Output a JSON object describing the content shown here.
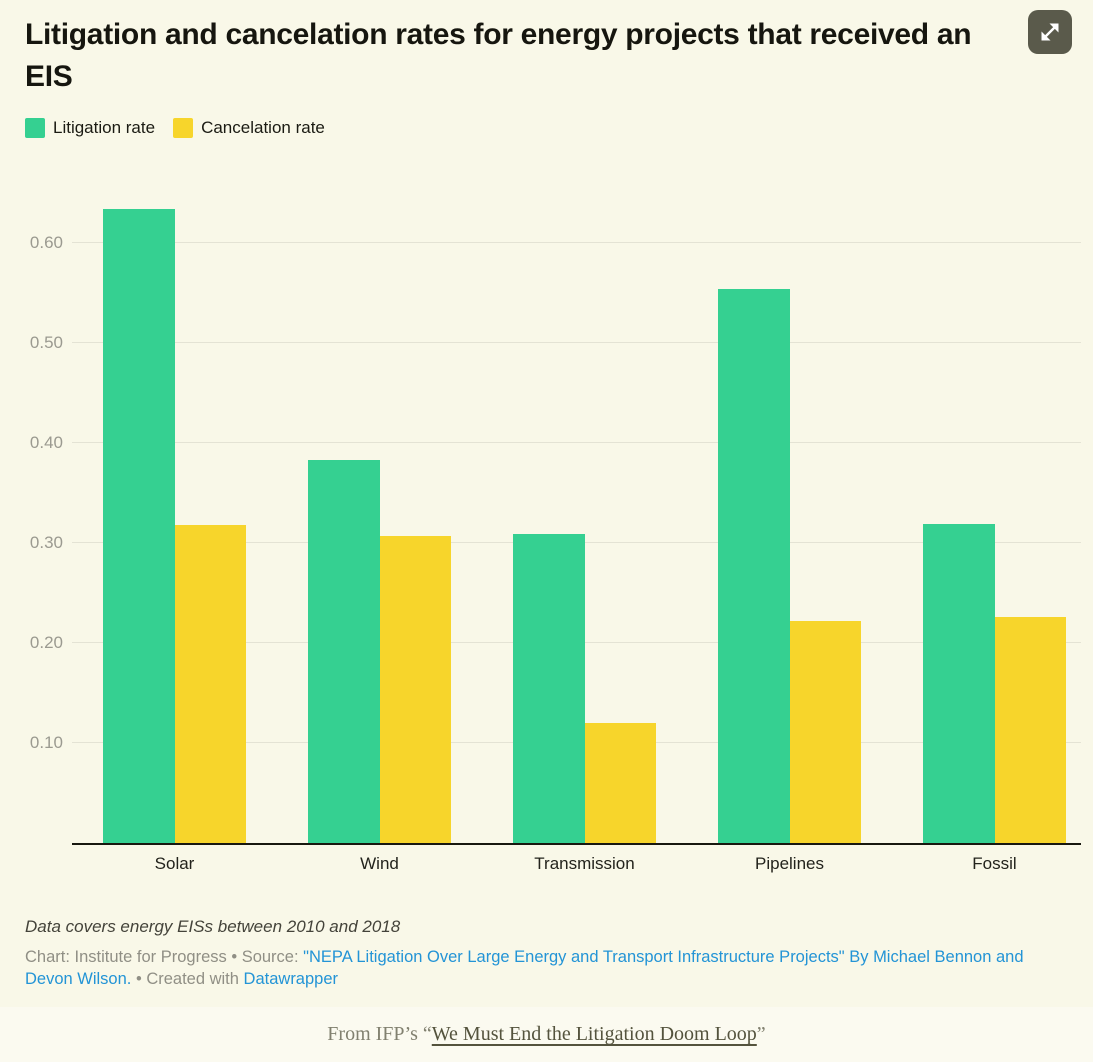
{
  "header": {
    "title": "Litigation and cancelation rates for energy projects that received an EIS"
  },
  "controls": {
    "expand_icon": "diagonal-expand-arrows"
  },
  "legend": {
    "items": [
      {
        "label": "Litigation rate",
        "color": "#35d091"
      },
      {
        "label": "Cancelation rate",
        "color": "#f7d52b"
      }
    ]
  },
  "chart_data": {
    "type": "bar",
    "title": "Litigation and cancelation rates for energy projects that received an EIS",
    "categories": [
      "Solar",
      "Wind",
      "Transmission",
      "Pipelines",
      "Fossil"
    ],
    "series": [
      {
        "name": "Litigation rate",
        "color": "#35d091",
        "values": [
          0.634,
          0.383,
          0.309,
          0.554,
          0.319
        ]
      },
      {
        "name": "Cancelation rate",
        "color": "#f7d52b",
        "values": [
          0.318,
          0.307,
          0.12,
          0.222,
          0.226
        ]
      }
    ],
    "xlabel": "",
    "ylabel": "",
    "ylim": [
      0,
      0.66
    ],
    "yticks": [
      0.1,
      0.2,
      0.3,
      0.4,
      0.5,
      0.6
    ],
    "ytick_labels": [
      "0.10",
      "0.20",
      "0.30",
      "0.40",
      "0.50",
      "0.60"
    ],
    "grid": "horizontal",
    "legend_position": "top",
    "colors": {
      "background": "#f9f8e8",
      "gridline": "#e4e3d4",
      "axis_line": "#18180f",
      "tick_text": "#9b9a90"
    }
  },
  "notes": {
    "data_note": "Data covers energy EISs between 2010 and 2018"
  },
  "footer": {
    "prefix": "Chart: Institute for Progress • Source: ",
    "source_link": "\"NEPA Litigation Over Large Energy and Transport Infrastructure Projects\" By Michael Bennon and Devon Wilson.",
    "middle": "  • Created with ",
    "datawrapper_link": "Datawrapper"
  },
  "caption": {
    "prefix": "From IFP’s “",
    "link": "We Must End the Litigation Doom Loop",
    "suffix": "”"
  }
}
